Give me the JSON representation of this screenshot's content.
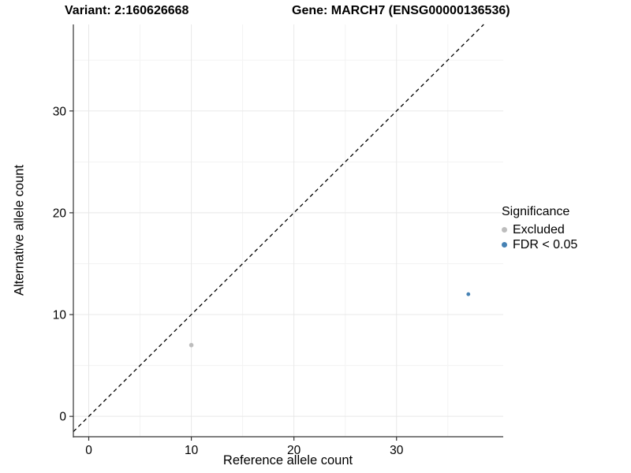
{
  "titles": {
    "variant": "Variant: 2:160626668",
    "gene": "Gene: MARCH7 (ENSG00000136536)"
  },
  "chart_data": {
    "type": "scatter",
    "xlabel": "Reference allele count",
    "ylabel": "Alternative allele count",
    "xlim": [
      -1.5,
      40.4
    ],
    "ylim": [
      -2.0,
      38.5
    ],
    "x_ticks": [
      0,
      10,
      20,
      30
    ],
    "y_ticks": [
      0,
      10,
      20,
      30
    ],
    "x_minor_ticks": [
      5,
      15,
      25,
      35
    ],
    "y_minor_ticks": [
      5,
      15,
      25,
      35
    ],
    "grid": true,
    "legend": {
      "title": "Significance",
      "position": "right"
    },
    "reference_line": {
      "kind": "y=x",
      "style": "dashed",
      "color": "#000000"
    },
    "series": [
      {
        "name": "Excluded",
        "color": "#bdbdbd",
        "marker_radius": 2.8,
        "points": [
          [
            10,
            7
          ]
        ]
      },
      {
        "name": "FDR < 0.05",
        "color": "#4682b4",
        "marker_radius": 2.4,
        "points": [
          [
            37,
            12
          ]
        ]
      }
    ]
  },
  "style_colors": {
    "axis_line": "#333333",
    "tick_label": "#000000",
    "grid_major": "#e8e8e8",
    "grid_minor": "#f3f3f3"
  }
}
